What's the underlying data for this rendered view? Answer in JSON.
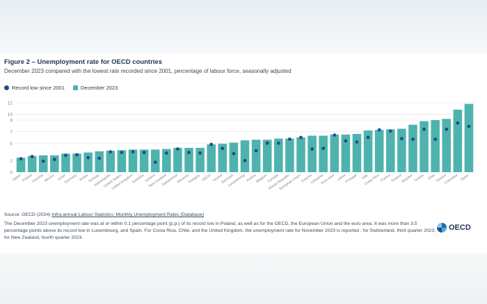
{
  "figure": {
    "title": "Figure 2 – Unemployment rate for OECD countries",
    "subtitle": "December 2023 compared with the lowest rate recorded since 2001, percentage of labour force, seasonally adjusted",
    "source_prefix": "Source: OECD (2024) ",
    "source_link": "Infra-annual Labour Statistics: Monthly Unemployment Rates (Database)",
    "note": "The December 2023 unemployment rate was at or within 0.1 percentage point (p.p.) of its record low in Poland, as well as for the OECD, the European Union and the euro area. It was more than 3.5 percentage points above its record low in Luxembourg, and Spain. For Costa Rica, Chile, and the United Kingdom, the unemployment rate for November 2023 is reported ; for Switzerland, third quarter 2023; for New Zealand, fourth quarter 2023.",
    "logo_text": "OECD"
  },
  "colors": {
    "bar": "#4fb3ad",
    "dot": "#1f4e8a",
    "grid": "#e6e9ec",
    "axis_text": "#7a8794"
  },
  "chart_data": {
    "type": "bar",
    "title": "Figure 2 – Unemployment rate for OECD countries",
    "subtitle": "December 2023 compared with the lowest rate recorded since 2001, percentage of labour force, seasonally adjusted",
    "xlabel": "",
    "ylabel": "",
    "ylim": [
      0,
      12
    ],
    "yticks": [
      0,
      2,
      5,
      7,
      9,
      10,
      12
    ],
    "grid": true,
    "legend_position": "top-left",
    "categories": [
      "Japan",
      "Poland",
      "Czechia",
      "Mexico",
      "Israel",
      "Germany",
      "Korea",
      "Norway",
      "Netherlands",
      "United States",
      "United Kingdom",
      "Australia",
      "Iceland",
      "New Zealand",
      "Switzerland",
      "Slovenia",
      "Hungary",
      "OECD",
      "Ireland",
      "Denmark",
      "Luxembourg",
      "Austria",
      "Belgium",
      "Canada",
      "Slovak Republic",
      "European Union",
      "Estonia",
      "Lithuania",
      "Euro area",
      "Latvia",
      "Portugal",
      "Italy",
      "Costa Rica",
      "France",
      "Finland",
      "Sweden",
      "Turkiye",
      "Chile",
      "Greece",
      "Colombia",
      "Spain"
    ],
    "series": [
      {
        "name": "Record low since 2001",
        "type": "dot",
        "values": [
          2.3,
          2.7,
          1.9,
          2.2,
          2.9,
          3.0,
          2.5,
          2.4,
          3.5,
          3.4,
          3.5,
          3.4,
          1.7,
          3.3,
          4.0,
          3.4,
          3.3,
          4.8,
          4.1,
          3.2,
          2.0,
          3.7,
          5.0,
          5.0,
          5.7,
          6.0,
          4.0,
          4.1,
          6.4,
          5.4,
          5.2,
          6.0,
          7.3,
          7.1,
          5.8,
          5.7,
          7.4,
          5.7,
          7.4,
          8.5,
          7.9
        ]
      },
      {
        "name": "December 2023",
        "type": "bar",
        "values": [
          2.5,
          2.8,
          2.9,
          2.9,
          3.2,
          3.2,
          3.4,
          3.6,
          3.7,
          3.8,
          3.9,
          3.9,
          3.9,
          4.0,
          4.2,
          4.2,
          4.2,
          4.8,
          4.9,
          5.1,
          5.5,
          5.6,
          5.6,
          5.8,
          5.8,
          6.0,
          6.3,
          6.3,
          6.5,
          6.5,
          6.6,
          7.2,
          7.3,
          7.4,
          7.5,
          8.2,
          8.8,
          9.0,
          9.2,
          10.8,
          11.8
        ]
      }
    ]
  }
}
